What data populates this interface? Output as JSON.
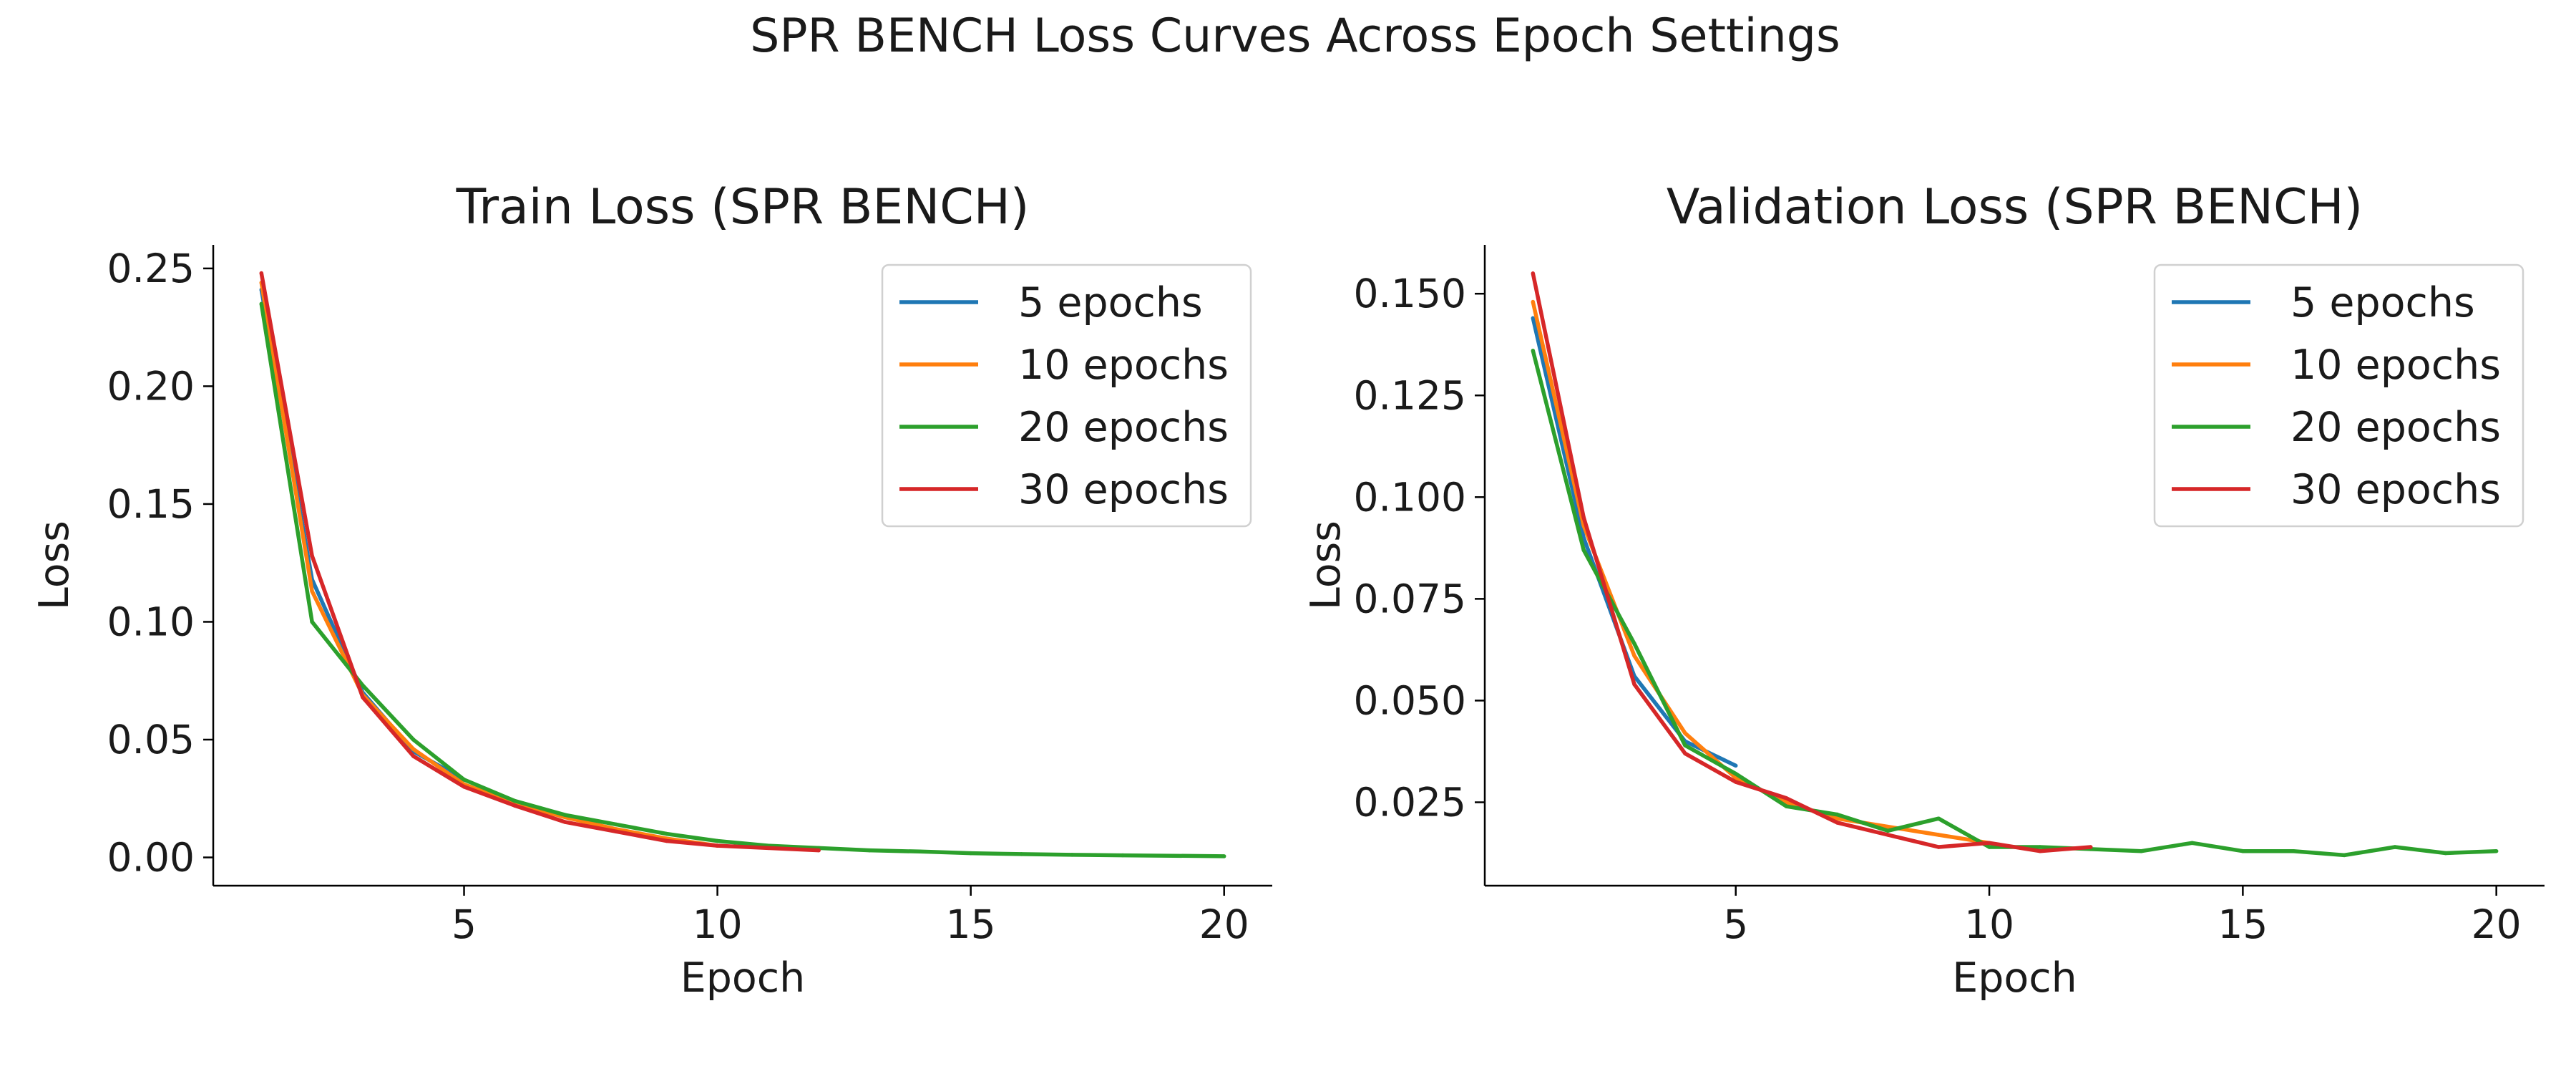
{
  "figure": {
    "suptitle": "SPR BENCH Loss Curves Across Epoch Settings"
  },
  "colors": {
    "5 epochs": "#1f77b4",
    "10 epochs": "#ff7f0e",
    "20 epochs": "#2ca02c",
    "30 epochs": "#d62728"
  },
  "chart_data": [
    {
      "type": "line",
      "title": "Train Loss (SPR BENCH)",
      "xlabel": "Epoch",
      "ylabel": "Loss",
      "xlim": [
        0.05,
        20.95
      ],
      "ylim": [
        -0.012,
        0.26
      ],
      "xticks": [
        5,
        10,
        15,
        20
      ],
      "yticks": [
        0.0,
        0.05,
        0.1,
        0.15,
        0.2,
        0.25
      ],
      "ytick_labels": [
        "0.00",
        "0.05",
        "0.10",
        "0.15",
        "0.20",
        "0.25"
      ],
      "grid": false,
      "legend": "top-right",
      "series": [
        {
          "name": "5 epochs",
          "x": [
            1,
            2,
            3,
            4,
            5
          ],
          "y": [
            0.241,
            0.118,
            0.07,
            0.045,
            0.033
          ]
        },
        {
          "name": "10 epochs",
          "x": [
            1,
            2,
            3,
            4,
            5,
            6,
            7,
            8,
            9,
            10
          ],
          "y": [
            0.244,
            0.113,
            0.069,
            0.046,
            0.031,
            0.023,
            0.017,
            0.012,
            0.008,
            0.005
          ]
        },
        {
          "name": "20 epochs",
          "x": [
            1,
            2,
            3,
            4,
            5,
            6,
            7,
            8,
            9,
            10,
            11,
            12,
            13,
            14,
            15,
            16,
            17,
            18,
            19,
            20
          ],
          "y": [
            0.235,
            0.1,
            0.073,
            0.05,
            0.033,
            0.024,
            0.018,
            0.014,
            0.01,
            0.007,
            0.005,
            0.004,
            0.003,
            0.0025,
            0.0018,
            0.0014,
            0.0011,
            0.0009,
            0.0007,
            0.0005
          ]
        },
        {
          "name": "30 epochs",
          "x": [
            1,
            2,
            3,
            4,
            5,
            6,
            7,
            8,
            9,
            10,
            11,
            12
          ],
          "y": [
            0.248,
            0.128,
            0.068,
            0.043,
            0.03,
            0.022,
            0.015,
            0.011,
            0.007,
            0.005,
            0.004,
            0.003
          ]
        }
      ]
    },
    {
      "type": "line",
      "title": "Validation Loss (SPR BENCH)",
      "xlabel": "Epoch",
      "ylabel": "Loss",
      "xlim": [
        0.05,
        20.95
      ],
      "ylim": [
        0.0045,
        0.162
      ],
      "xticks": [
        5,
        10,
        15,
        20
      ],
      "yticks": [
        0.025,
        0.05,
        0.075,
        0.1,
        0.125,
        0.15
      ],
      "ytick_labels": [
        "0.025",
        "0.050",
        "0.075",
        "0.100",
        "0.125",
        "0.150"
      ],
      "grid": false,
      "legend": "top-right",
      "series": [
        {
          "name": "5 epochs",
          "x": [
            1,
            2,
            3,
            4,
            5
          ],
          "y": [
            0.144,
            0.09,
            0.056,
            0.04,
            0.034
          ]
        },
        {
          "name": "10 epochs",
          "x": [
            1,
            2,
            3,
            4,
            5,
            6,
            7,
            8,
            9,
            10
          ],
          "y": [
            0.148,
            0.093,
            0.061,
            0.042,
            0.031,
            0.025,
            0.021,
            0.019,
            0.017,
            0.015
          ]
        },
        {
          "name": "20 epochs",
          "x": [
            1,
            2,
            3,
            4,
            5,
            6,
            7,
            8,
            9,
            10,
            11,
            12,
            13,
            14,
            15,
            16,
            17,
            18,
            19,
            20
          ],
          "y": [
            0.136,
            0.087,
            0.064,
            0.039,
            0.032,
            0.024,
            0.022,
            0.018,
            0.021,
            0.014,
            0.014,
            0.0135,
            0.013,
            0.015,
            0.013,
            0.013,
            0.012,
            0.014,
            0.0125,
            0.013
          ]
        },
        {
          "name": "30 epochs",
          "x": [
            1,
            2,
            3,
            4,
            5,
            6,
            7,
            8,
            9,
            10,
            11,
            12
          ],
          "y": [
            0.155,
            0.095,
            0.054,
            0.037,
            0.03,
            0.026,
            0.02,
            0.017,
            0.014,
            0.015,
            0.013,
            0.014
          ]
        }
      ]
    }
  ]
}
